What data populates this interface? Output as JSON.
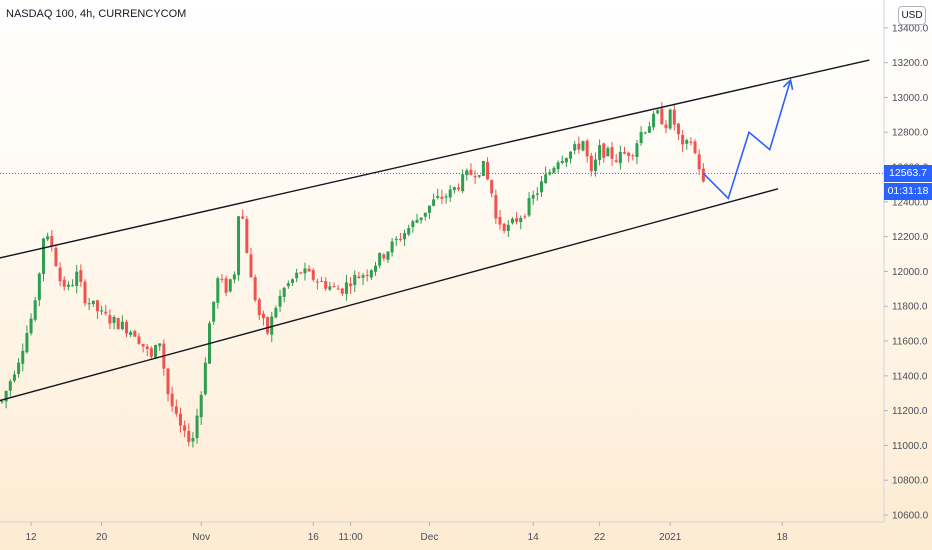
{
  "header": {
    "symbol_title": "NASDAQ 100, 4h, CURRENCYCOM",
    "currency": "USD"
  },
  "last_price_tag": "12563.7",
  "countdown_tag": "01:31:18",
  "colors": {
    "up": "#26a69a",
    "up_body": "#2e9e52",
    "down": "#ef5350",
    "projection": "#2962ff",
    "trendline": "#131722",
    "last_price_blue": "#2962ff"
  },
  "chart_data": {
    "type": "candlestick",
    "title": "NASDAQ 100, 4h, CURRENCYCOM",
    "y_axis": {
      "ticks": [
        "13400.0",
        "13200.0",
        "13000.0",
        "12800.0",
        "12600.0",
        "12400.0",
        "12200.0",
        "12000.0",
        "11800.0",
        "11600.0",
        "11400.0",
        "11200.0",
        "11000.0",
        "10800.0",
        "10600.0"
      ],
      "tick_values": [
        13400,
        13200,
        13000,
        12800,
        12600,
        12400,
        12200,
        12000,
        11800,
        11600,
        11400,
        11200,
        11000,
        10800,
        10600
      ],
      "range": [
        10560,
        13560
      ]
    },
    "x_axis": {
      "ticks": [
        "12",
        "20",
        "Nov",
        "16",
        "11:00",
        "Dec",
        "14",
        "22",
        "2021",
        "18"
      ],
      "tick_bars": [
        7,
        24,
        48,
        75,
        84,
        103,
        128,
        144,
        161,
        188
      ]
    },
    "price_path": [
      [
        0,
        11250
      ],
      [
        4,
        11500
      ],
      [
        8,
        11800
      ],
      [
        10,
        12200
      ],
      [
        12,
        12150
      ],
      [
        14,
        11950
      ],
      [
        16,
        11900
      ],
      [
        18,
        11980
      ],
      [
        20,
        11850
      ],
      [
        24,
        11750
      ],
      [
        28,
        11700
      ],
      [
        32,
        11650
      ],
      [
        36,
        11500
      ],
      [
        38,
        11600
      ],
      [
        40,
        11300
      ],
      [
        42,
        11150
      ],
      [
        44,
        11050
      ],
      [
        46,
        11050
      ],
      [
        48,
        11300
      ],
      [
        50,
        11700
      ],
      [
        52,
        11950
      ],
      [
        54,
        11900
      ],
      [
        56,
        12000
      ],
      [
        57,
        12350
      ],
      [
        58,
        12300
      ],
      [
        60,
        11950
      ],
      [
        62,
        11750
      ],
      [
        64,
        11650
      ],
      [
        66,
        11800
      ],
      [
        68,
        11900
      ],
      [
        72,
        12000
      ],
      [
        76,
        11950
      ],
      [
        80,
        11900
      ],
      [
        82,
        11900
      ],
      [
        84,
        11950
      ],
      [
        88,
        12000
      ],
      [
        92,
        12100
      ],
      [
        96,
        12200
      ],
      [
        100,
        12300
      ],
      [
        104,
        12400
      ],
      [
        108,
        12450
      ],
      [
        112,
        12550
      ],
      [
        116,
        12600
      ],
      [
        118,
        12450
      ],
      [
        119,
        12300
      ],
      [
        122,
        12250
      ],
      [
        126,
        12350
      ],
      [
        130,
        12500
      ],
      [
        134,
        12650
      ],
      [
        138,
        12700
      ],
      [
        140,
        12750
      ],
      [
        142,
        12550
      ],
      [
        144,
        12700
      ],
      [
        148,
        12650
      ],
      [
        152,
        12700
      ],
      [
        154,
        12800
      ],
      [
        156,
        12850
      ],
      [
        158,
        12900
      ],
      [
        160,
        12850
      ],
      [
        161,
        12900
      ],
      [
        162,
        12850
      ],
      [
        164,
        12700
      ],
      [
        166,
        12750
      ],
      [
        168,
        12600
      ],
      [
        169,
        12500
      ]
    ],
    "trendlines": [
      {
        "name": "upper channel",
        "points": [
          [
            -1,
            12075
          ],
          [
            209,
            13215
          ]
        ]
      },
      {
        "name": "lower channel",
        "points": [
          [
            -1,
            11255
          ],
          [
            187,
            12475
          ]
        ]
      }
    ],
    "projection": {
      "points": [
        [
          169,
          12563
        ],
        [
          175,
          12420
        ],
        [
          180,
          12800
        ],
        [
          185,
          12700
        ],
        [
          190,
          13100
        ]
      ]
    },
    "last_price": 12563.7,
    "last_bar": 169
  }
}
